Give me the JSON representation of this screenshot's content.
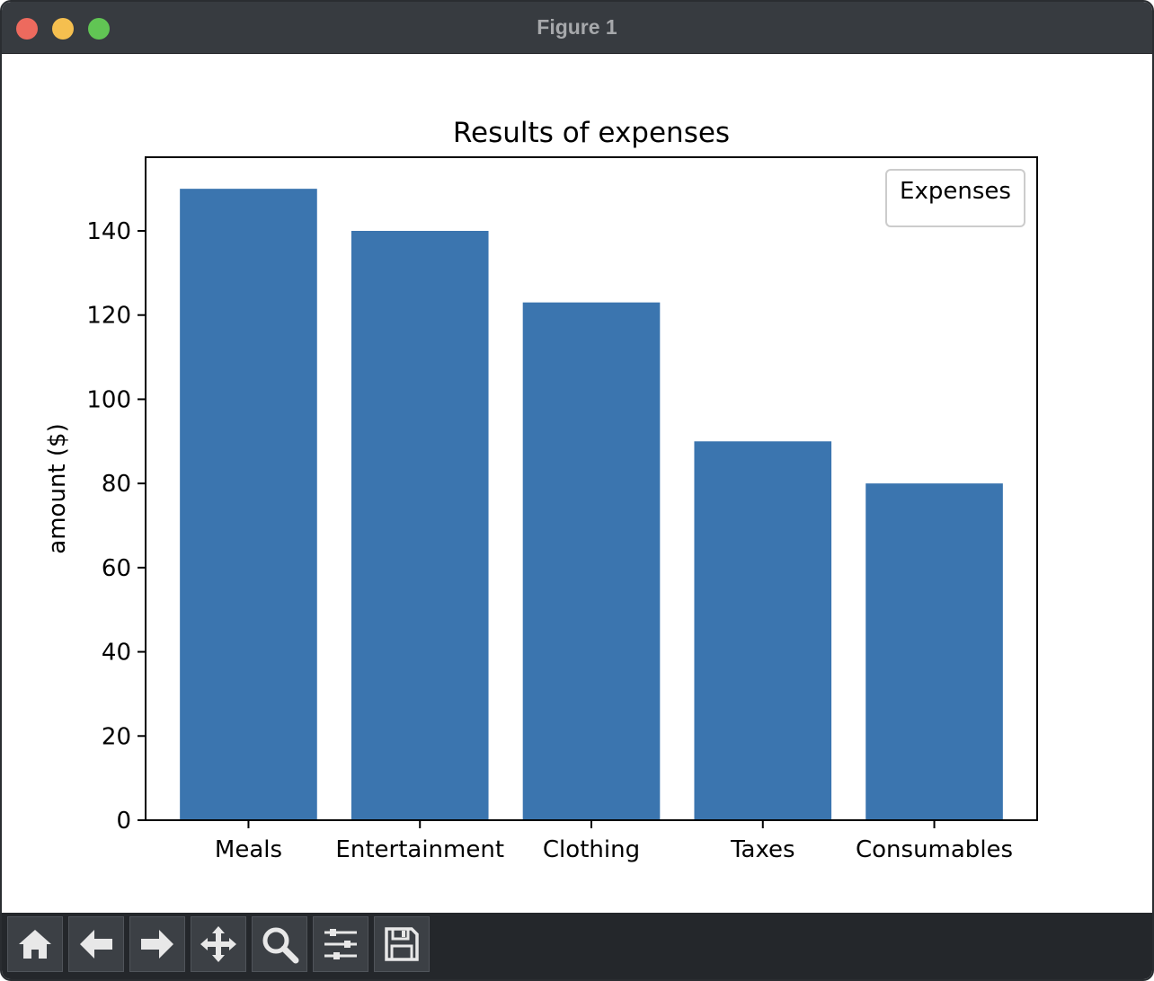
{
  "window": {
    "title": "Figure 1"
  },
  "toolbar": {
    "buttons": [
      {
        "icon": "home-icon"
      },
      {
        "icon": "back-arrow-icon"
      },
      {
        "icon": "forward-arrow-icon"
      },
      {
        "icon": "pan-icon"
      },
      {
        "icon": "zoom-icon"
      },
      {
        "icon": "configure-subplots-icon"
      },
      {
        "icon": "save-icon"
      }
    ]
  },
  "chart_data": {
    "type": "bar",
    "title": "Results of expenses",
    "xlabel": "",
    "ylabel": "amount ($)",
    "categories": [
      "Meals",
      "Entertainment",
      "Clothing",
      "Taxes",
      "Consumables"
    ],
    "values": [
      150,
      140,
      123,
      90,
      80
    ],
    "ylim": [
      0,
      157.5
    ],
    "yticks": [
      0,
      20,
      40,
      60,
      80,
      100,
      120,
      140
    ],
    "bar_color": "#3b75af",
    "legend": {
      "title": "Expenses",
      "location": "upper right",
      "entries": []
    },
    "grid": false
  }
}
